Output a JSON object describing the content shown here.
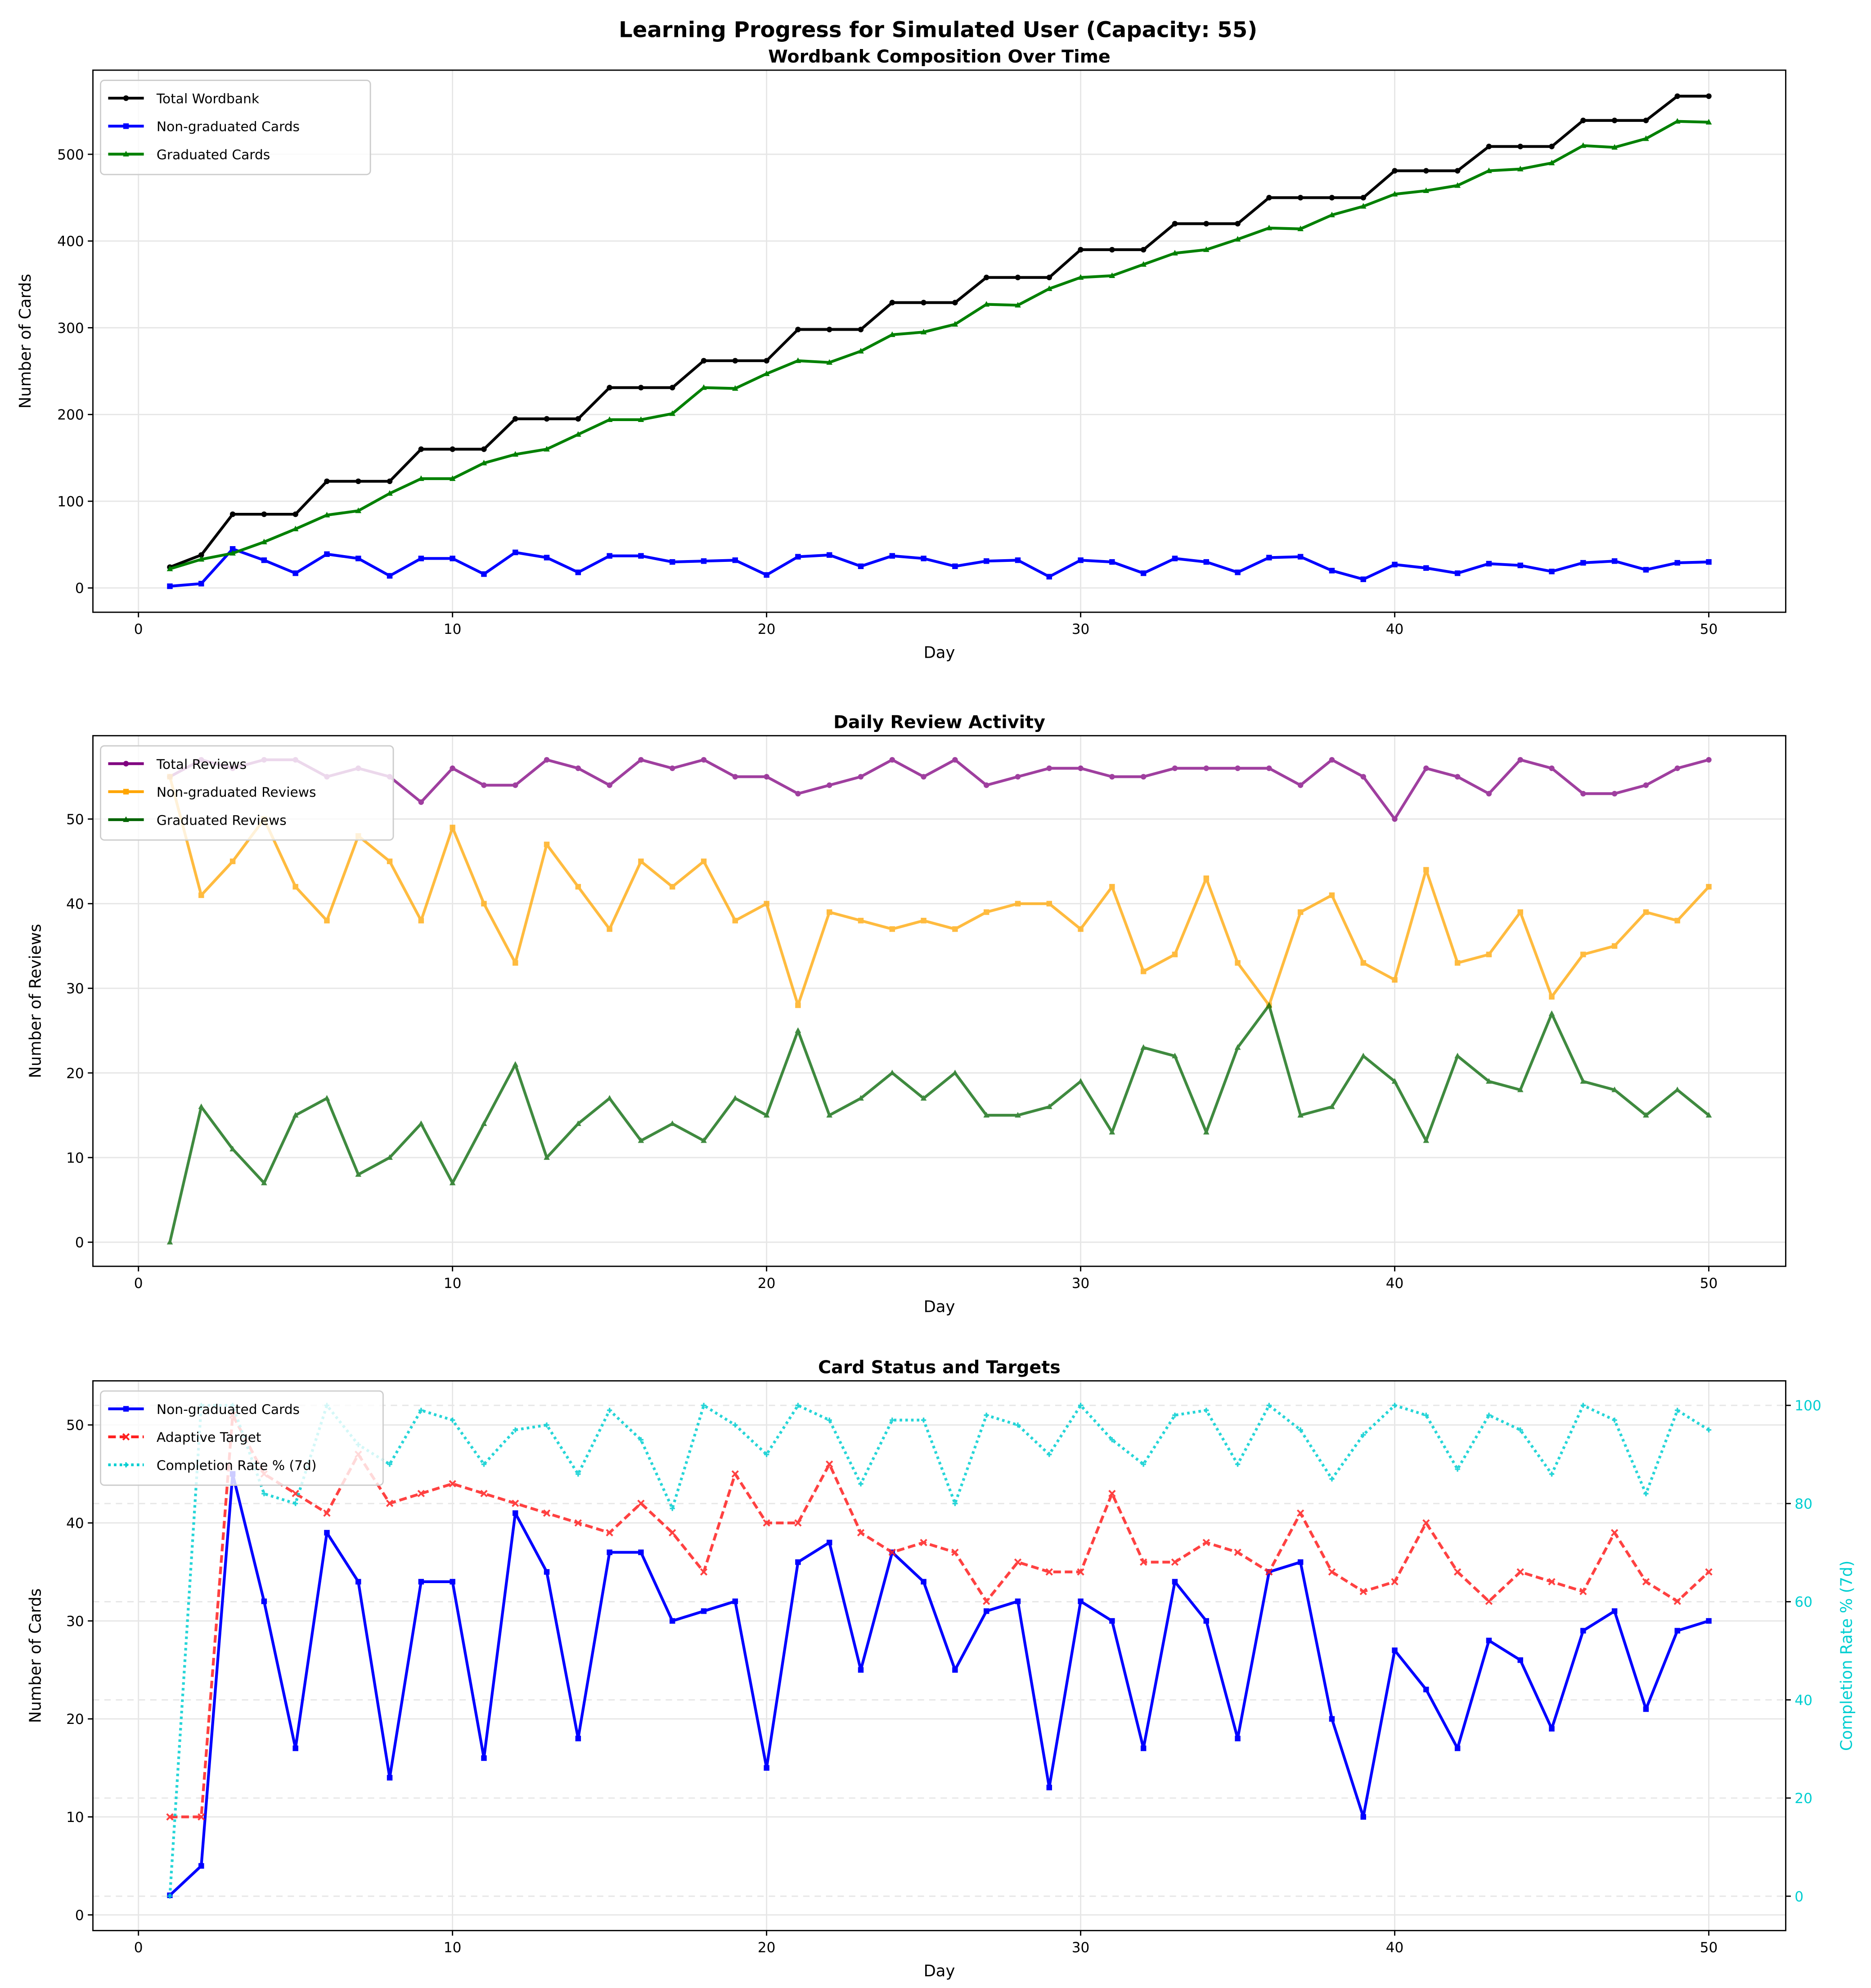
{
  "suptitle": "Learning Progress for Simulated User (Capacity: 55)",
  "chart_data": [
    {
      "type": "line",
      "title": "Wordbank Composition Over Time",
      "xlabel": "Day",
      "ylabel": "Number of Cards",
      "xlim": [
        -1.45,
        52.45
      ],
      "ylim": [
        -28,
        597
      ],
      "xticks": [
        0,
        10,
        20,
        30,
        40,
        50
      ],
      "yticks": [
        0,
        100,
        200,
        300,
        400,
        500
      ],
      "grid": true,
      "legend": "top-left",
      "x": [
        1,
        2,
        3,
        4,
        5,
        6,
        7,
        8,
        9,
        10,
        11,
        12,
        13,
        14,
        15,
        16,
        17,
        18,
        19,
        20,
        21,
        22,
        23,
        24,
        25,
        26,
        27,
        28,
        29,
        30,
        31,
        32,
        33,
        34,
        35,
        36,
        37,
        38,
        39,
        40,
        41,
        42,
        43,
        44,
        45,
        46,
        47,
        48,
        49,
        50
      ],
      "series": [
        {
          "name": "Total Wordbank",
          "color": "#000000",
          "marker": "circle",
          "style": "solid",
          "values": [
            24,
            38,
            85,
            85,
            85,
            123,
            123,
            123,
            160,
            160,
            160,
            195,
            195,
            195,
            231,
            231,
            231,
            262,
            262,
            262,
            298,
            298,
            298,
            329,
            329,
            329,
            358,
            358,
            358,
            390,
            390,
            390,
            420,
            420,
            420,
            450,
            450,
            450,
            450,
            481,
            481,
            481,
            509,
            509,
            509,
            539,
            539,
            539,
            567,
            567
          ]
        },
        {
          "name": "Non-graduated Cards",
          "color": "#0000ff",
          "marker": "square",
          "style": "solid",
          "values": [
            2,
            5,
            45,
            32,
            17,
            39,
            34,
            14,
            34,
            34,
            16,
            41,
            35,
            18,
            37,
            37,
            30,
            31,
            32,
            15,
            36,
            38,
            25,
            37,
            34,
            25,
            31,
            32,
            13,
            32,
            30,
            17,
            34,
            30,
            18,
            35,
            36,
            20,
            10,
            27,
            23,
            17,
            28,
            26,
            19,
            29,
            31,
            21,
            29,
            30
          ]
        },
        {
          "name": "Graduated Cards",
          "color": "#008000",
          "marker": "triangle",
          "style": "solid",
          "values": [
            22,
            33,
            40,
            53,
            68,
            84,
            89,
            109,
            126,
            126,
            144,
            154,
            160,
            177,
            194,
            194,
            201,
            231,
            230,
            247,
            262,
            260,
            273,
            292,
            295,
            304,
            327,
            326,
            345,
            358,
            360,
            373,
            386,
            390,
            402,
            415,
            414,
            430,
            440,
            454,
            458,
            464,
            481,
            483,
            490,
            510,
            508,
            518,
            538,
            537
          ]
        }
      ]
    },
    {
      "type": "line",
      "title": "Daily Review Activity",
      "xlabel": "Day",
      "ylabel": "Number of Reviews",
      "xlim": [
        -1.45,
        52.45
      ],
      "ylim": [
        -2.85,
        59.85
      ],
      "xticks": [
        0,
        10,
        20,
        30,
        40,
        50
      ],
      "yticks": [
        0,
        10,
        20,
        30,
        40,
        50
      ],
      "grid": true,
      "legend": "top-left",
      "x": [
        1,
        2,
        3,
        4,
        5,
        6,
        7,
        8,
        9,
        10,
        11,
        12,
        13,
        14,
        15,
        16,
        17,
        18,
        19,
        20,
        21,
        22,
        23,
        24,
        25,
        26,
        27,
        28,
        29,
        30,
        31,
        32,
        33,
        34,
        35,
        36,
        37,
        38,
        39,
        40,
        41,
        42,
        43,
        44,
        45,
        46,
        47,
        48,
        49,
        50
      ],
      "series": [
        {
          "name": "Total Reviews",
          "color": "#800080",
          "marker": "circle",
          "style": "solid",
          "values": [
            55,
            57,
            56,
            57,
            57,
            55,
            56,
            55,
            52,
            56,
            54,
            54,
            57,
            56,
            54,
            57,
            56,
            57,
            55,
            55,
            53,
            54,
            55,
            57,
            55,
            57,
            54,
            55,
            56,
            56,
            55,
            55,
            56,
            56,
            56,
            56,
            54,
            57,
            55,
            50,
            56,
            55,
            53,
            57,
            56,
            53,
            53,
            54,
            56,
            57
          ]
        },
        {
          "name": "Non-graduated Reviews",
          "color": "#ffa500",
          "marker": "square",
          "style": "solid",
          "values": [
            55,
            41,
            45,
            50,
            42,
            38,
            48,
            45,
            38,
            49,
            40,
            33,
            47,
            42,
            37,
            45,
            42,
            45,
            38,
            40,
            28,
            39,
            38,
            37,
            38,
            37,
            39,
            40,
            40,
            37,
            42,
            32,
            34,
            43,
            33,
            28,
            39,
            41,
            33,
            31,
            44,
            33,
            34,
            39,
            29,
            34,
            35,
            39,
            38,
            42
          ]
        },
        {
          "name": "Graduated Reviews",
          "color": "#006400",
          "marker": "triangle",
          "style": "solid",
          "values": [
            0,
            16,
            11,
            7,
            15,
            17,
            8,
            10,
            14,
            7,
            14,
            21,
            10,
            14,
            17,
            12,
            14,
            12,
            17,
            15,
            25,
            15,
            17,
            20,
            17,
            20,
            15,
            15,
            16,
            19,
            13,
            23,
            22,
            13,
            23,
            28,
            15,
            16,
            22,
            19,
            12,
            22,
            19,
            18,
            27,
            19,
            18,
            15,
            18,
            15
          ]
        }
      ]
    },
    {
      "type": "line",
      "title": "Card Status and Targets",
      "xlabel": "Day",
      "ylabel": "Number of Cards",
      "ylabel_right": "Completion Rate % (7d)",
      "xlim": [
        -1.45,
        52.45
      ],
      "ylim": [
        -1.6,
        54.5
      ],
      "ylim_right": [
        -7,
        105
      ],
      "xticks": [
        0,
        10,
        20,
        30,
        40,
        50
      ],
      "yticks": [
        0,
        10,
        20,
        30,
        40,
        50
      ],
      "yticks_right": [
        0,
        20,
        40,
        60,
        80,
        100
      ],
      "grid": true,
      "legend": "top-left",
      "x": [
        1,
        2,
        3,
        4,
        5,
        6,
        7,
        8,
        9,
        10,
        11,
        12,
        13,
        14,
        15,
        16,
        17,
        18,
        19,
        20,
        21,
        22,
        23,
        24,
        25,
        26,
        27,
        28,
        29,
        30,
        31,
        32,
        33,
        34,
        35,
        36,
        37,
        38,
        39,
        40,
        41,
        42,
        43,
        44,
        45,
        46,
        47,
        48,
        49,
        50
      ],
      "series": [
        {
          "name": "Non-graduated Cards",
          "color": "#0000ff",
          "marker": "square",
          "style": "solid",
          "axis": "left",
          "values": [
            2,
            5,
            45,
            32,
            17,
            39,
            34,
            14,
            34,
            34,
            16,
            41,
            35,
            18,
            37,
            37,
            30,
            31,
            32,
            15,
            36,
            38,
            25,
            37,
            34,
            25,
            31,
            32,
            13,
            32,
            30,
            17,
            34,
            30,
            18,
            35,
            36,
            20,
            10,
            27,
            23,
            17,
            28,
            26,
            19,
            29,
            31,
            21,
            29,
            30
          ]
        },
        {
          "name": "Adaptive Target",
          "color": "#ff2020",
          "marker": "x",
          "style": "dashed",
          "axis": "left",
          "values": [
            10,
            10,
            51,
            45,
            43,
            41,
            47,
            42,
            43,
            44,
            43,
            42,
            41,
            40,
            39,
            42,
            39,
            35,
            45,
            40,
            40,
            46,
            39,
            37,
            38,
            37,
            32,
            36,
            35,
            35,
            43,
            36,
            36,
            38,
            37,
            35,
            41,
            35,
            33,
            34,
            40,
            35,
            32,
            35,
            34,
            33,
            39,
            34,
            32,
            35
          ]
        },
        {
          "name": "Completion Rate % (7d)",
          "color": "#00ced1",
          "marker": "plus",
          "style": "dotted",
          "axis": "right",
          "values": [
            0,
            100,
            100,
            82,
            80,
            100,
            92,
            88,
            99,
            97,
            88,
            95,
            96,
            86,
            99,
            93,
            79,
            100,
            96,
            90,
            100,
            97,
            84,
            97,
            97,
            80,
            98,
            96,
            90,
            100,
            93,
            88,
            98,
            99,
            88,
            100,
            95,
            85,
            94,
            100,
            98,
            87,
            98,
            95,
            86,
            100,
            97,
            82,
            99,
            95
          ]
        }
      ]
    }
  ]
}
